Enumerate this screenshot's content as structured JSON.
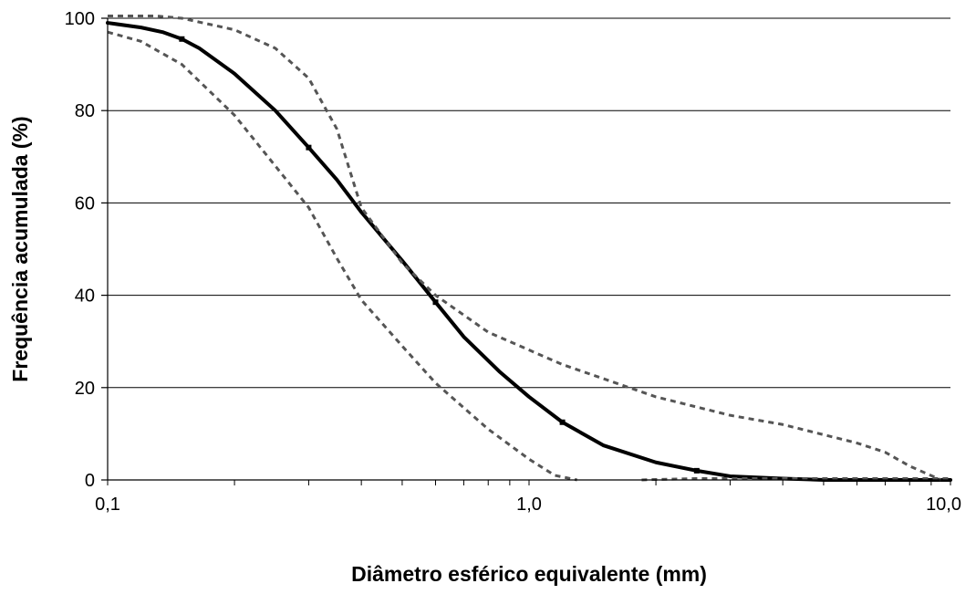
{
  "chart_data": {
    "type": "line",
    "title": "",
    "xlabel": "Diâmetro esférico equivalente (mm)",
    "ylabel": "Frequência acumulada (%)",
    "x_scale": "log",
    "xlim": [
      0.1,
      10.0
    ],
    "ylim": [
      0,
      100
    ],
    "x_ticks": [
      0.1,
      1.0,
      10.0
    ],
    "x_tick_labels": [
      "0,1",
      "1,0",
      "10,0"
    ],
    "y_ticks": [
      0,
      20,
      40,
      60,
      80,
      100
    ],
    "y_tick_labels": [
      "0",
      "20",
      "40",
      "60",
      "80",
      "100"
    ],
    "grid": "horizontal",
    "legend": "none",
    "series": [
      {
        "style": "solid",
        "color": "#000000",
        "x": [
          0.1,
          0.12,
          0.135,
          0.15,
          0.165,
          0.2,
          0.25,
          0.3,
          0.35,
          0.4,
          0.5,
          0.6,
          0.7,
          0.85,
          1.0,
          1.2,
          1.5,
          2.0,
          2.5,
          3.0,
          4.0,
          5.0,
          6.0,
          8.0,
          10.0
        ],
        "y": [
          99,
          98,
          97,
          95.5,
          93.5,
          88,
          80,
          72,
          65,
          58,
          47.5,
          38.5,
          31,
          23.5,
          18,
          12.5,
          7.5,
          3.8,
          2.0,
          0.8,
          0.3,
          0,
          0,
          0,
          0
        ]
      },
      {
        "style": "dashed",
        "color": "#555555",
        "x": [
          0.1,
          0.13,
          0.15,
          0.2,
          0.25,
          0.3,
          0.35,
          0.4,
          0.5,
          0.6,
          0.8,
          1.2,
          2.0,
          3.0,
          4.0,
          6.0,
          7.0,
          8.0,
          9.5
        ],
        "y": [
          100.5,
          100.5,
          100,
          97.5,
          93.5,
          87,
          76,
          59,
          47,
          40,
          32,
          25,
          18,
          14,
          12,
          8,
          6,
          3,
          0
        ]
      },
      {
        "style": "dashed",
        "color": "#555555",
        "x": [
          0.1,
          0.12,
          0.15,
          0.2,
          0.25,
          0.3,
          0.35,
          0.4,
          0.5,
          0.6,
          0.8,
          1.0,
          1.15,
          1.3
        ],
        "y": [
          97,
          95,
          90,
          79,
          68,
          59,
          48,
          39,
          29,
          21,
          11,
          4.5,
          1,
          0
        ]
      },
      {
        "style": "dashed",
        "color": "#555555",
        "x": [
          1.85,
          2.0,
          2.5,
          3.0,
          4.0,
          5.0,
          7.0,
          10.0
        ],
        "y": [
          0,
          0.1,
          0.3,
          0.3,
          0.3,
          0.3,
          0.3,
          0.3
        ]
      }
    ]
  }
}
